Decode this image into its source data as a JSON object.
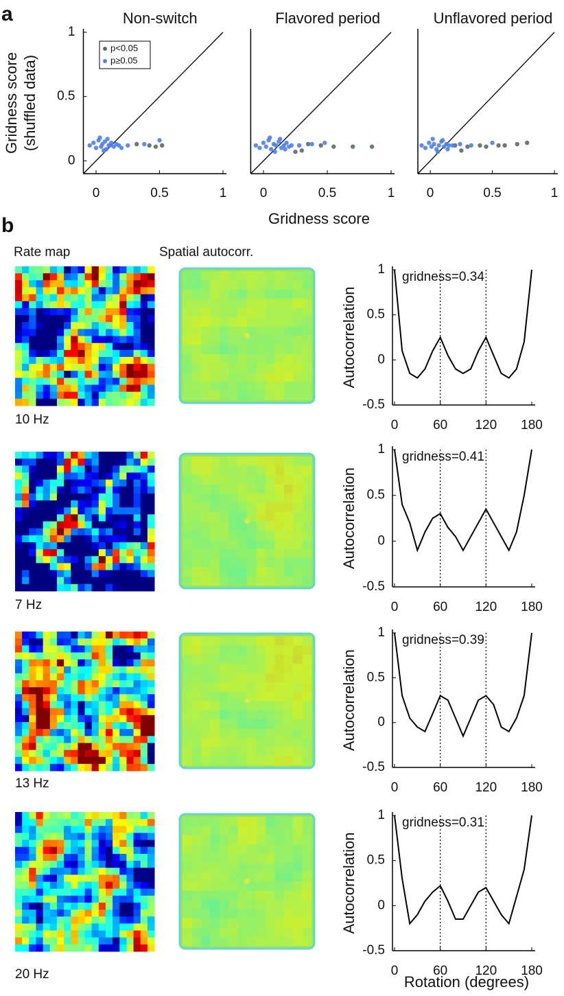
{
  "panel_labels": {
    "a": "a",
    "b": "b"
  },
  "panel_b": {
    "columns": [
      "Rate map",
      "Spatial autocorr."
    ],
    "peak_rates": [
      "10 Hz",
      "7 Hz",
      "13 Hz",
      "20 Hz"
    ]
  },
  "chart_data": [
    {
      "type": "scatter",
      "title": "Non-switch",
      "ylabel": [
        "Gridness score",
        "(shuffled data)"
      ],
      "xlim": [
        -0.1,
        1
      ],
      "ylim": [
        -0.1,
        1
      ],
      "xticks": [
        0,
        0.5,
        1
      ],
      "yticks": [
        0,
        0.5,
        1
      ],
      "series": [
        {
          "name": "p<0.05",
          "color": "#5b6b67",
          "x": [
            0.32,
            0.42,
            0.47,
            0.52
          ],
          "y": [
            0.13,
            0.12,
            0.11,
            0.12
          ]
        },
        {
          "name": "p≥0.05",
          "color": "#4f80ee",
          "x": [
            -0.05,
            -0.02,
            0,
            0.02,
            0.04,
            0.05,
            0.07,
            0.08,
            0.1,
            0.12,
            0.14,
            0.16,
            0.18,
            0.2,
            0.03,
            0.06,
            0.09,
            0.11,
            0.25,
            0.38,
            0.5
          ],
          "y": [
            0.12,
            0.14,
            0.1,
            0.16,
            0.11,
            0.13,
            0.15,
            0.09,
            0.12,
            0.14,
            0.11,
            0.13,
            0.12,
            0.1,
            0.18,
            0.08,
            0.17,
            0.12,
            0.12,
            0.13,
            0.16
          ]
        }
      ]
    },
    {
      "type": "scatter",
      "title": "Flavored period",
      "xlabel": "Gridness score",
      "xlim": [
        -0.1,
        1
      ],
      "ylim": [
        -0.1,
        1
      ],
      "xticks": [
        0,
        0.5,
        1
      ],
      "series": [
        {
          "color": "#5b6b67",
          "x": [
            0.25,
            0.3,
            0.35,
            0.45,
            0.55,
            0.7,
            0.85
          ],
          "y": [
            0.07,
            0.08,
            0.13,
            0.12,
            0.11,
            0.11,
            0.11
          ]
        },
        {
          "color": "#4f80ee",
          "x": [
            -0.06,
            -0.03,
            0,
            0.02,
            0.04,
            0.06,
            0.08,
            0.1,
            0.12,
            0.14,
            0.16,
            0.18,
            0.2,
            0.22,
            0.05,
            0.09,
            0.13,
            0.17,
            0.28,
            0.38,
            0.48
          ],
          "y": [
            0.12,
            0.1,
            0.14,
            0.11,
            0.16,
            0.09,
            0.13,
            0.12,
            0.15,
            0.1,
            0.12,
            0.14,
            0.11,
            0.12,
            0.18,
            0.07,
            0.17,
            0.09,
            0.12,
            0.13,
            0.14
          ]
        }
      ]
    },
    {
      "type": "scatter",
      "title": "Unflavored period",
      "xlim": [
        -0.1,
        1
      ],
      "ylim": [
        -0.1,
        1
      ],
      "xticks": [
        0,
        0.5,
        1
      ],
      "series": [
        {
          "color": "#5b6b67",
          "x": [
            0.2,
            0.25,
            0.3,
            0.4,
            0.45,
            0.55,
            0.6,
            0.7,
            0.78
          ],
          "y": [
            0.12,
            0.08,
            0.11,
            0.12,
            0.11,
            0.12,
            0.12,
            0.13,
            0.14
          ]
        },
        {
          "color": "#4f80ee",
          "x": [
            -0.07,
            -0.04,
            -0.01,
            0.01,
            0.03,
            0.05,
            0.07,
            0.09,
            0.11,
            0.13,
            0.15,
            0.02,
            0.06,
            0.1,
            0.14,
            0.18,
            0.24,
            0.33,
            0.5
          ],
          "y": [
            0.12,
            0.1,
            0.14,
            0.11,
            0.13,
            0.09,
            0.12,
            0.15,
            0.11,
            0.13,
            0.12,
            0.17,
            0.07,
            0.16,
            0.09,
            0.12,
            0.13,
            0.12,
            0.14
          ]
        }
      ]
    },
    {
      "type": "line",
      "annotation": "gridness=0.34",
      "ylabel": "Autocorrelation",
      "color": "#000000",
      "x": [
        0,
        10,
        20,
        30,
        40,
        50,
        60,
        70,
        80,
        90,
        100,
        110,
        120,
        130,
        140,
        150,
        160,
        170,
        180
      ],
      "values": [
        1,
        0.1,
        -0.15,
        -0.2,
        -0.1,
        0.1,
        0.25,
        0.05,
        -0.1,
        -0.15,
        -0.1,
        0.1,
        0.25,
        0.05,
        -0.15,
        -0.2,
        -0.1,
        0.2,
        1
      ],
      "xlim": [
        0,
        180
      ],
      "xticks": [
        0,
        60,
        120,
        180
      ],
      "ylim": [
        -0.5,
        1
      ],
      "yticks": [
        -0.5,
        0,
        0.5,
        1
      ],
      "vlines": [
        60,
        120
      ]
    },
    {
      "type": "line",
      "annotation": "gridness=0.41",
      "ylabel": "Autocorrelation",
      "color": "#000000",
      "x": [
        0,
        10,
        20,
        30,
        40,
        50,
        60,
        70,
        80,
        90,
        100,
        110,
        120,
        130,
        140,
        150,
        160,
        170,
        180
      ],
      "values": [
        1,
        0.4,
        0.2,
        -0.1,
        0.1,
        0.25,
        0.3,
        0.15,
        0.05,
        -0.1,
        0.05,
        0.2,
        0.35,
        0.2,
        0.05,
        -0.1,
        0.1,
        0.5,
        1
      ],
      "xlim": [
        0,
        180
      ],
      "xticks": [
        0,
        60,
        120,
        180
      ],
      "ylim": [
        -0.5,
        1
      ],
      "yticks": [
        -0.5,
        0,
        0.5,
        1
      ],
      "vlines": [
        60,
        120
      ]
    },
    {
      "type": "line",
      "annotation": "gridness=0.39",
      "ylabel": "Autocorrelation",
      "color": "#000000",
      "x": [
        0,
        10,
        20,
        30,
        40,
        50,
        60,
        70,
        80,
        90,
        100,
        110,
        120,
        130,
        140,
        150,
        160,
        170,
        180
      ],
      "values": [
        1,
        0.3,
        0.05,
        -0.05,
        -0.1,
        0.1,
        0.3,
        0.25,
        0.05,
        -0.15,
        0.05,
        0.25,
        0.3,
        0.2,
        -0.05,
        -0.1,
        0.05,
        0.3,
        1
      ],
      "xlim": [
        0,
        180
      ],
      "xticks": [
        0,
        60,
        120,
        180
      ],
      "ylim": [
        -0.5,
        1
      ],
      "yticks": [
        -0.5,
        0,
        0.5,
        1
      ],
      "vlines": [
        60,
        120
      ]
    },
    {
      "type": "line",
      "annotation": "gridness=0.31",
      "ylabel": "Autocorrelation",
      "xlabel": "Rotation (degrees)",
      "color": "#000000",
      "x": [
        0,
        10,
        20,
        30,
        40,
        50,
        60,
        70,
        80,
        90,
        100,
        110,
        120,
        130,
        140,
        150,
        160,
        170,
        180
      ],
      "values": [
        1,
        0.3,
        -0.2,
        -0.1,
        0.05,
        0.15,
        0.22,
        0.05,
        -0.15,
        -0.15,
        0,
        0.15,
        0.2,
        0.05,
        -0.1,
        -0.2,
        0.1,
        0.4,
        1
      ],
      "xlim": [
        0,
        180
      ],
      "xticks": [
        0,
        60,
        120,
        180
      ],
      "ylim": [
        -0.5,
        1
      ],
      "yticks": [
        -0.5,
        0,
        0.5,
        1
      ],
      "vlines": [
        60,
        120
      ]
    }
  ]
}
